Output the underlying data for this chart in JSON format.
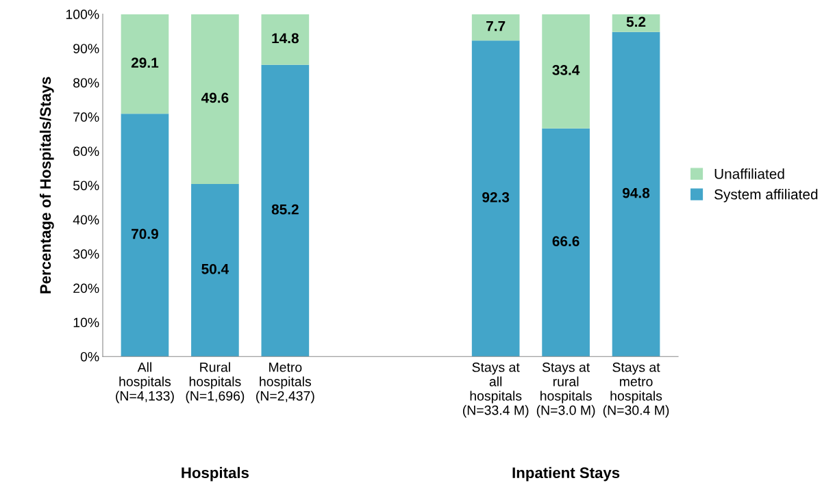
{
  "chart_data": {
    "type": "bar",
    "stacked": true,
    "ylabel": "Percentage of Hospitals/Stays",
    "categories": [
      "All\nhospitals\n(N=4,133)",
      "Rural\nhospitals\n(N=1,696)",
      "Metro\nhospitals\n(N=2,437)",
      null,
      null,
      "Stays at\nall\nhospitals\n(N=33.4 M)",
      "Stays at\nrural\nhospitals\n(N=3.0 M)",
      "Stays at\nmetro\nhospitals\n(N=30.4 M)"
    ],
    "series": [
      {
        "name": "System affiliated",
        "color": "#43a5c9",
        "values": [
          70.9,
          50.4,
          85.2,
          null,
          null,
          92.3,
          66.6,
          94.8
        ]
      },
      {
        "name": "Unaffiliated",
        "color": "#a8dfb6",
        "values": [
          29.1,
          49.6,
          14.8,
          null,
          null,
          7.7,
          33.4,
          5.2
        ]
      }
    ],
    "ylim": [
      0,
      100
    ],
    "yticks": [
      {
        "value": 0,
        "label": "0%"
      },
      {
        "value": 10,
        "label": "10%"
      },
      {
        "value": 20,
        "label": "20%"
      },
      {
        "value": 30,
        "label": "30%"
      },
      {
        "value": 40,
        "label": "40%"
      },
      {
        "value": 50,
        "label": "50%"
      },
      {
        "value": 60,
        "label": "60%"
      },
      {
        "value": 70,
        "label": "70%"
      },
      {
        "value": 80,
        "label": "80%"
      },
      {
        "value": 90,
        "label": "90%"
      },
      {
        "value": 100,
        "label": "100%"
      }
    ],
    "data_labels": true,
    "legend": "right",
    "grid": false,
    "annotations": [
      "Hospitals",
      "Inpatient Stays"
    ]
  }
}
